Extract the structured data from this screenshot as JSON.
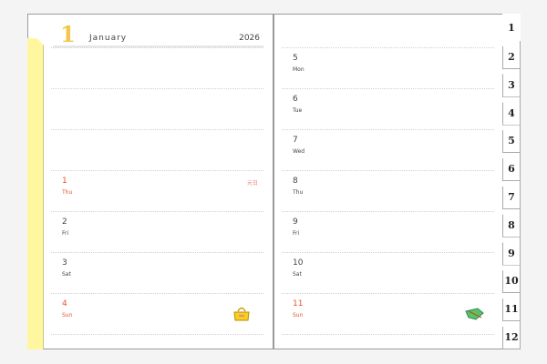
{
  "header": {
    "month_number": "1",
    "month_name": "January",
    "year": "2026"
  },
  "left_days": [
    {
      "num": "1",
      "dow": "Thu",
      "holiday": "元日",
      "red": true
    },
    {
      "num": "2",
      "dow": "Fri",
      "holiday": "",
      "red": false
    },
    {
      "num": "3",
      "dow": "Sat",
      "holiday": "",
      "red": false
    },
    {
      "num": "4",
      "dow": "Sun",
      "holiday": "",
      "red": true,
      "icon": "handbag-icon"
    }
  ],
  "right_days": [
    {
      "num": "5",
      "dow": "Mon",
      "red": false
    },
    {
      "num": "6",
      "dow": "Tue",
      "red": false
    },
    {
      "num": "7",
      "dow": "Wed",
      "red": false
    },
    {
      "num": "8",
      "dow": "Thu",
      "red": false
    },
    {
      "num": "9",
      "dow": "Fri",
      "red": false
    },
    {
      "num": "10",
      "dow": "Sat",
      "red": false
    },
    {
      "num": "11",
      "dow": "Sun",
      "red": true,
      "icon": "leaf-icon"
    }
  ],
  "month_tabs": [
    "1",
    "2",
    "3",
    "4",
    "5",
    "6",
    "7",
    "8",
    "9",
    "10",
    "11",
    "12"
  ],
  "colors": {
    "accent": "#f4c64a",
    "holiday": "#e8532f",
    "tab_strip": "#fff7a0"
  }
}
